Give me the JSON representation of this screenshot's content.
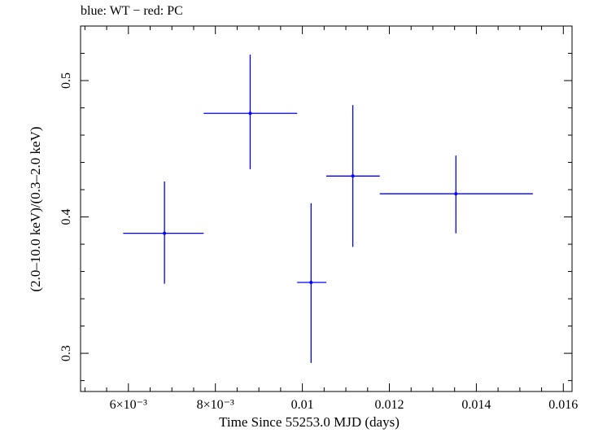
{
  "chart_data": {
    "type": "scatter",
    "title": "blue: WT − red: PC",
    "xlabel": "Time Since 55253.0 MJD (days)",
    "ylabel": "(2.0–10.0 keV)/(0.3–2.0 keV)",
    "xlim": [
      0.0049,
      0.0162
    ],
    "ylim": [
      0.272,
      0.54
    ],
    "x_ticks": [
      {
        "value": 0.006,
        "label": "6×10⁻³"
      },
      {
        "value": 0.008,
        "label": "8×10⁻³"
      },
      {
        "value": 0.01,
        "label": "0.01"
      },
      {
        "value": 0.012,
        "label": "0.012"
      },
      {
        "value": 0.014,
        "label": "0.014"
      },
      {
        "value": 0.016,
        "label": "0.016"
      }
    ],
    "y_ticks": [
      {
        "value": 0.3,
        "label": "0.3"
      },
      {
        "value": 0.4,
        "label": "0.4"
      },
      {
        "value": 0.5,
        "label": "0.5"
      }
    ],
    "grid": false,
    "series": [
      {
        "name": "WT",
        "color": "#0000ff",
        "points": [
          {
            "x": 0.00683,
            "y": 0.388,
            "x_lo": 0.00588,
            "x_hi": 0.00773,
            "y_lo": 0.351,
            "y_hi": 0.426
          },
          {
            "x": 0.0088,
            "y": 0.476,
            "x_lo": 0.00773,
            "x_hi": 0.00988,
            "y_lo": 0.435,
            "y_hi": 0.519
          },
          {
            "x": 0.0102,
            "y": 0.352,
            "x_lo": 0.00988,
            "x_hi": 0.01055,
            "y_lo": 0.293,
            "y_hi": 0.41
          },
          {
            "x": 0.01116,
            "y": 0.43,
            "x_lo": 0.01055,
            "x_hi": 0.01178,
            "y_lo": 0.378,
            "y_hi": 0.482
          },
          {
            "x": 0.01353,
            "y": 0.417,
            "x_lo": 0.01178,
            "x_hi": 0.0153,
            "y_lo": 0.388,
            "y_hi": 0.445
          }
        ]
      }
    ]
  }
}
